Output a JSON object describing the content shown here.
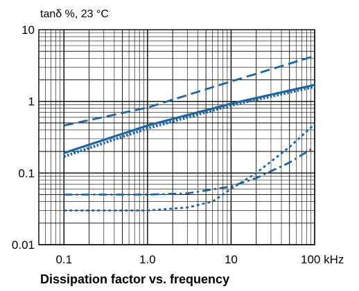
{
  "chart_data": {
    "type": "line",
    "title": "Dissipation factor vs. frequency",
    "ylabel": "tanδ %, 23 °C",
    "xlabel": "",
    "x_unit": "kHz",
    "x_scale": "log",
    "y_scale": "log",
    "xlim": [
      0.05,
      100
    ],
    "ylim": [
      0.01,
      10
    ],
    "x_ticks": [
      {
        "value": 0.1,
        "label": "0.1"
      },
      {
        "value": 1,
        "label": "1.0"
      },
      {
        "value": 10,
        "label": "10"
      },
      {
        "value": 100,
        "label": "100 kHz"
      }
    ],
    "y_ticks": [
      {
        "value": 10,
        "label": "10"
      },
      {
        "value": 1,
        "label": "1"
      },
      {
        "value": 0.1,
        "label": "0.1"
      },
      {
        "value": 0.01,
        "label": "0.01"
      }
    ],
    "grid": true,
    "color": "#1f64a5",
    "series": [
      {
        "style": "dashed",
        "points": [
          [
            0.1,
            0.46
          ],
          [
            1,
            0.82
          ],
          [
            10,
            1.9
          ],
          [
            100,
            4.3
          ]
        ]
      },
      {
        "style": "solid",
        "points": [
          [
            0.1,
            0.19
          ],
          [
            1,
            0.46
          ],
          [
            10,
            0.93
          ],
          [
            100,
            1.7
          ]
        ]
      },
      {
        "style": "dotted",
        "points": [
          [
            0.1,
            0.17
          ],
          [
            1,
            0.42
          ],
          [
            10,
            0.88
          ],
          [
            100,
            1.6
          ]
        ]
      },
      {
        "style": "dash-dot",
        "points": [
          [
            0.1,
            0.05
          ],
          [
            1,
            0.05
          ],
          [
            3,
            0.052
          ],
          [
            10,
            0.065
          ],
          [
            20,
            0.085
          ],
          [
            50,
            0.14
          ],
          [
            100,
            0.23
          ]
        ]
      },
      {
        "style": "short-dash",
        "points": [
          [
            0.1,
            0.03
          ],
          [
            1,
            0.03
          ],
          [
            3,
            0.033
          ],
          [
            6,
            0.04
          ],
          [
            10,
            0.06
          ],
          [
            20,
            0.1
          ],
          [
            50,
            0.23
          ],
          [
            100,
            0.48
          ]
        ]
      }
    ]
  }
}
